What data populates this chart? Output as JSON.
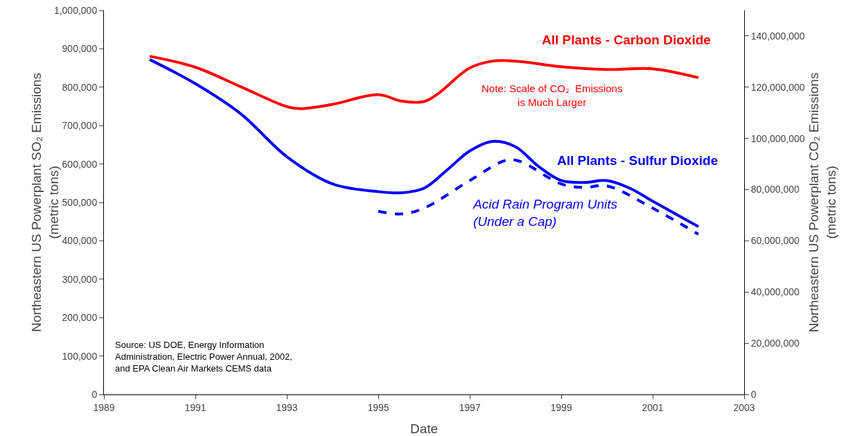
{
  "chart_data": {
    "type": "line",
    "xlabel": "Date",
    "ylabel": "Northeastern US Powerplant SO₂ Emissions\n(metric tons)",
    "y2label": "Northeastern US Powerplant CO₂ Emissions\n(metric tons)",
    "xlim": [
      1989,
      2003
    ],
    "xticks": [
      1989,
      1991,
      1993,
      1995,
      1997,
      1999,
      2001,
      2003
    ],
    "ylim": [
      0,
      1000000
    ],
    "yticks": [
      0,
      {
        "value": 100000,
        "label": "100,000"
      },
      {
        "value": 200000,
        "label": "200,000"
      },
      {
        "value": 300000,
        "label": "300,000"
      },
      {
        "value": 400000,
        "label": "400,000"
      },
      {
        "value": 500000,
        "label": "500,000"
      },
      {
        "value": 600000,
        "label": "600,000"
      },
      {
        "value": 700000,
        "label": "700,000"
      },
      {
        "value": 800000,
        "label": "800,000"
      },
      {
        "value": 900000,
        "label": "900,000"
      },
      {
        "value": 1000000,
        "label": "1,000,000"
      }
    ],
    "y2lim": [
      0,
      150000000
    ],
    "y2ticks": [
      0,
      {
        "value": 20000000,
        "label": "20,000,000"
      },
      {
        "value": 40000000,
        "label": "40,000,000"
      },
      {
        "value": 60000000,
        "label": "60,000,000"
      },
      {
        "value": 80000000,
        "label": "80,000,000"
      },
      {
        "value": 100000000,
        "label": "100,000,000"
      },
      {
        "value": 120000000,
        "label": "120,000,000"
      },
      {
        "value": 140000000,
        "label": "140,000,000"
      }
    ],
    "grid": false,
    "legend": false,
    "marker": "none",
    "series": [
      {
        "name": "All Plants - Carbon Dioxide",
        "color": "#ff0000",
        "axis": "y2",
        "line_style": "solid",
        "x": [
          1990,
          1991,
          1992,
          1993,
          1993.3,
          1994,
          1995,
          1995.5,
          1996,
          1996.3,
          1997,
          1997.5,
          1998,
          1999,
          2000,
          2001,
          2002
        ],
        "values": [
          132100000,
          127800000,
          120100000,
          112400000,
          111600000,
          113300000,
          117100000,
          114600000,
          114400000,
          117400000,
          127500000,
          130200000,
          130200000,
          128000000,
          126900000,
          127200000,
          123700000
        ]
      },
      {
        "name": "All Plants - Sulfur Dioxide",
        "color": "#0000ff",
        "line_style": "solid",
        "x": [
          1990,
          1991,
          1992,
          1993,
          1994,
          1995,
          1995.5,
          1996,
          1996.5,
          1997,
          1997.5,
          1998,
          1998.5,
          1999,
          1999.5,
          2000,
          2000.5,
          2001,
          2002
        ],
        "values": [
          872000,
          809000,
          730000,
          619000,
          548000,
          528000,
          525000,
          537000,
          584000,
          634000,
          659000,
          645000,
          594000,
          557000,
          552000,
          557000,
          537000,
          503000,
          437000
        ]
      },
      {
        "name": "Acid Rain Program Units\n(Under a Cap)",
        "color": "#0000ff",
        "line_style": "dashed",
        "x": [
          1995,
          1995.5,
          1996,
          1997,
          1997.8,
          1998.1,
          1999,
          1999.5,
          2000,
          2001,
          2002
        ],
        "values": [
          477000,
          470000,
          485000,
          557000,
          610000,
          607000,
          548000,
          539000,
          543000,
          485000,
          417000
        ]
      }
    ],
    "annotations": [
      "Note: Scale of CO₂  Emissions\nis Much Larger",
      "Source: US DOE, Energy Information\nAdministration, Electric Power Annual, 2002,\nand EPA Clean Air Markets CEMS data"
    ]
  }
}
